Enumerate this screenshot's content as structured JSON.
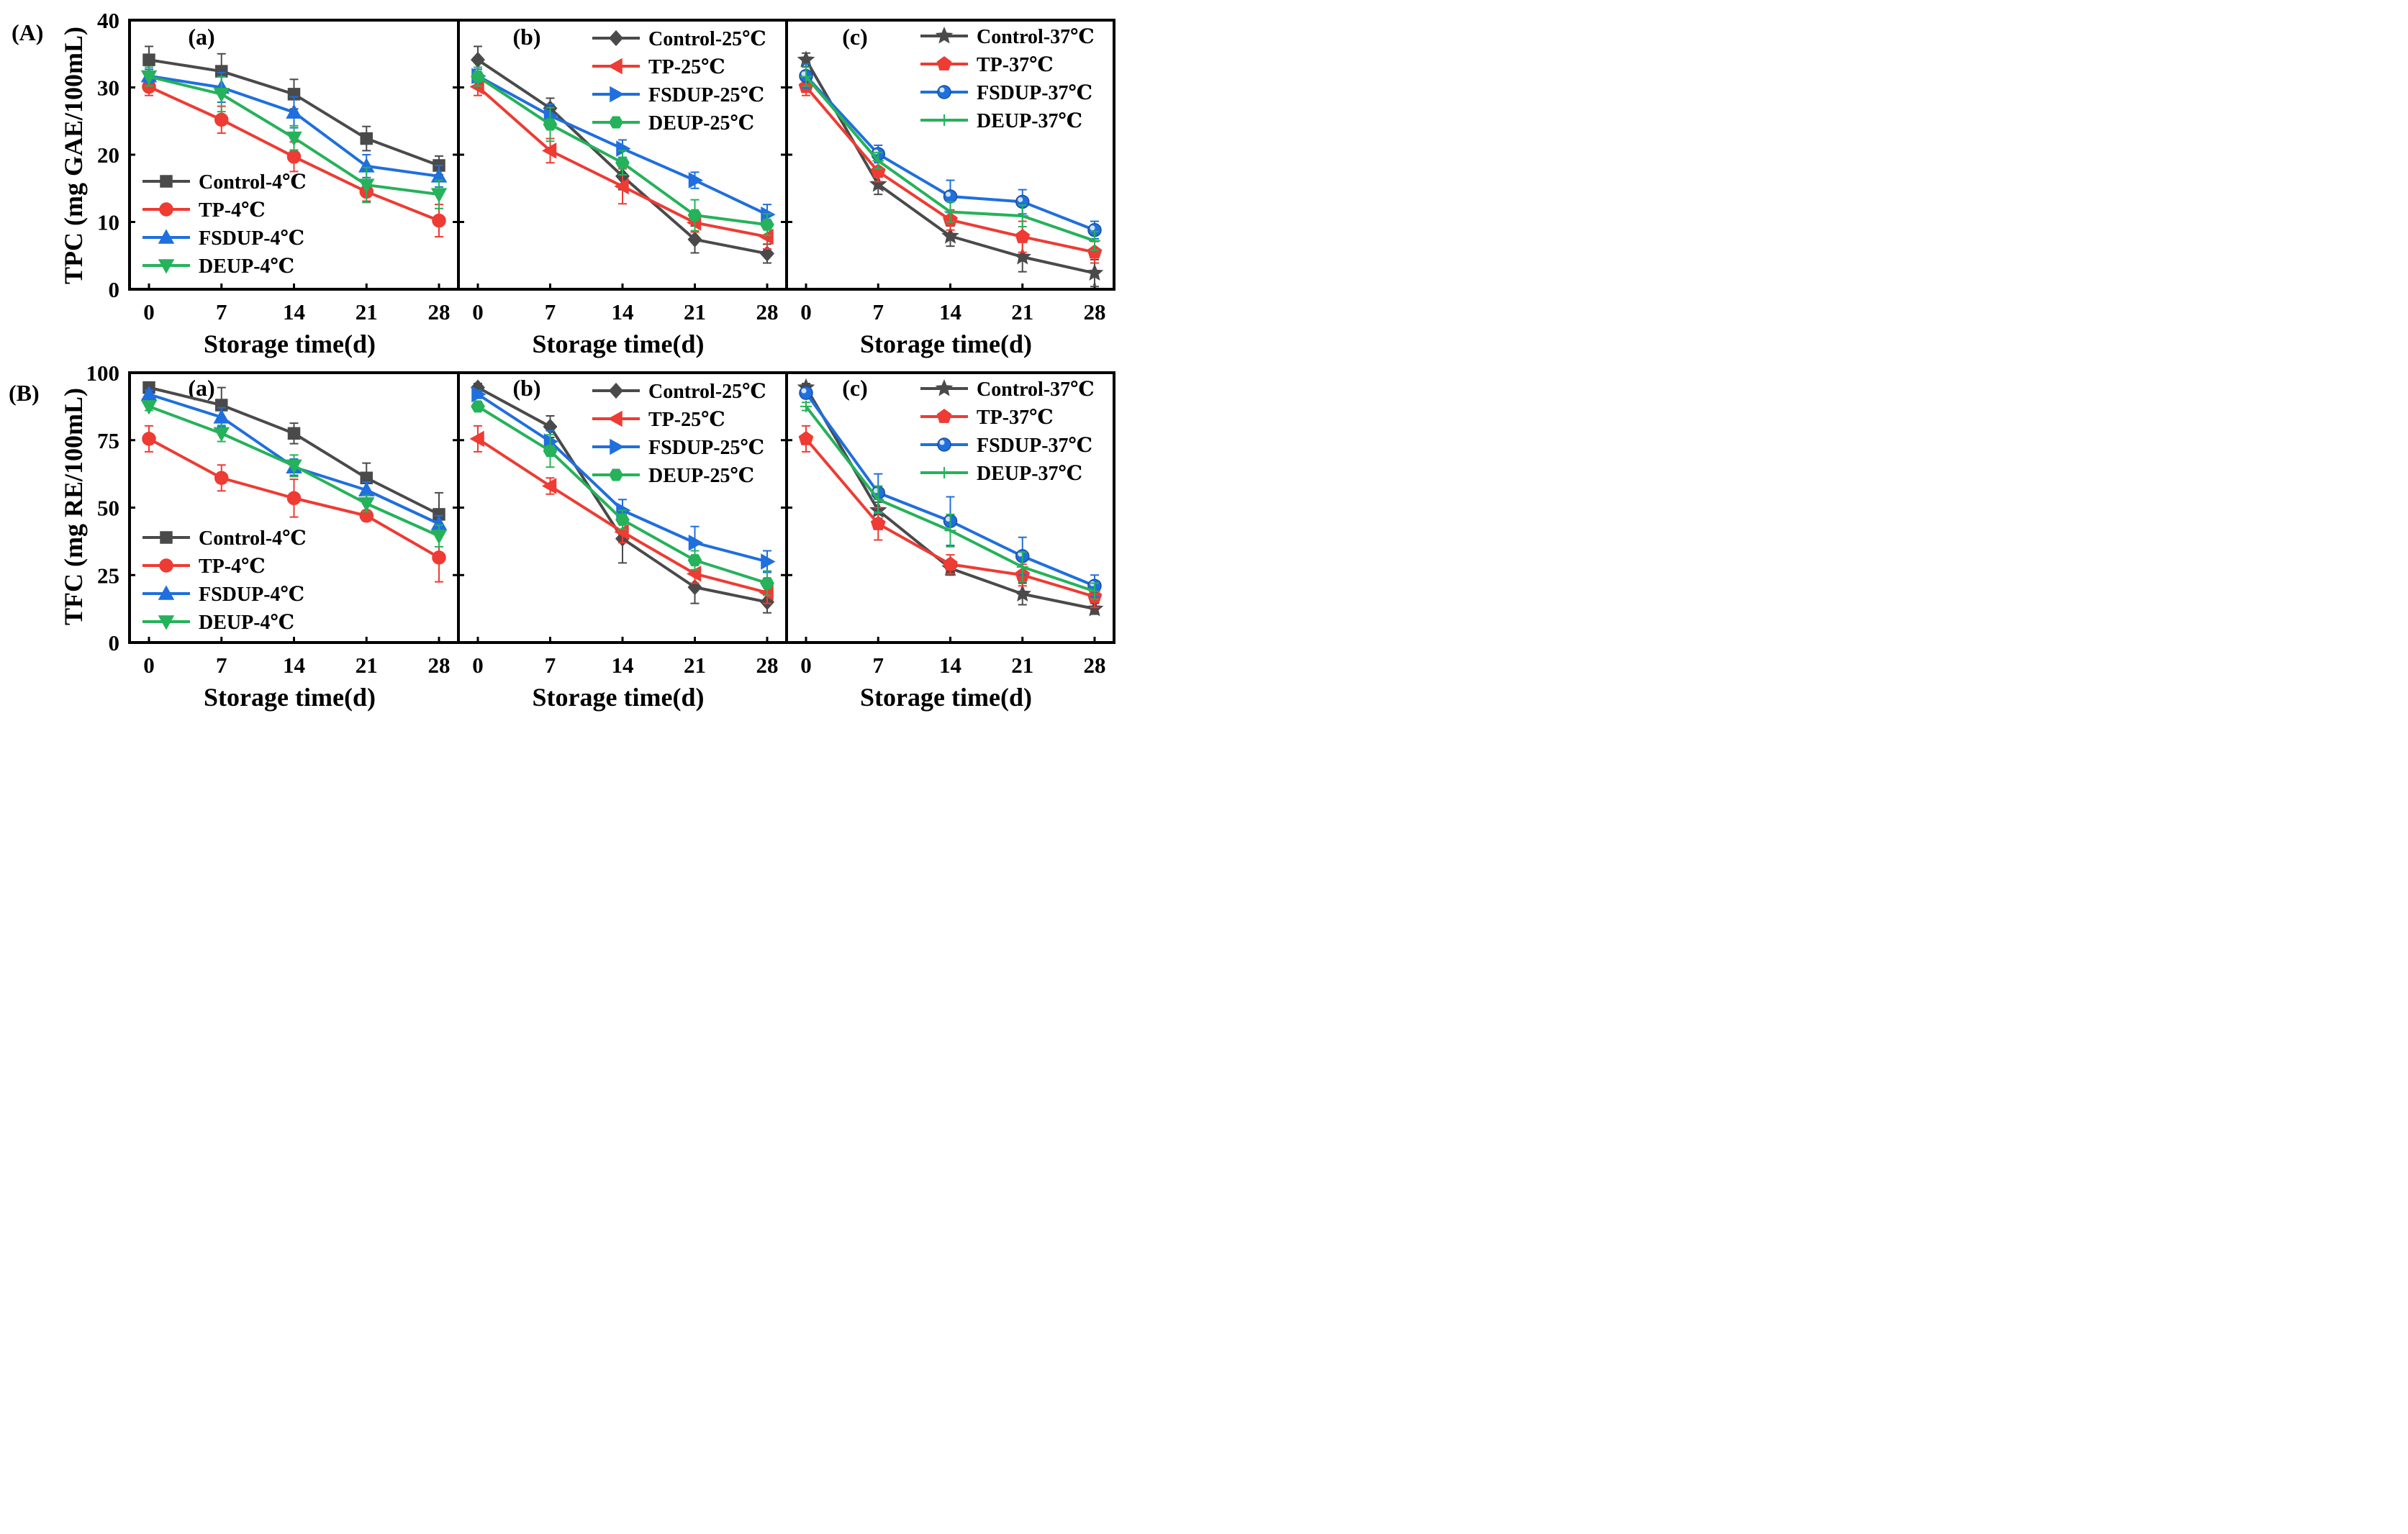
{
  "figure": {
    "row_labels": [
      "(A)",
      "(B)"
    ],
    "panel_labels": [
      "(a)",
      "(b)",
      "(c)"
    ],
    "xlabel": "Storage time(d)",
    "ylabels": [
      "TPC (mg GAE/100mL)",
      "TFC (mg RE/100mL)"
    ]
  },
  "colors": {
    "Control": "#4a4a4a",
    "TP": "#ee3b33",
    "FSDUP": "#1f6fde",
    "DEUP": "#25b25a"
  },
  "chart_data": [
    {
      "type": "line",
      "row": "(A)",
      "panel": "(a)",
      "x": [
        0,
        7,
        14,
        21,
        28
      ],
      "xticks": [
        "0",
        "7",
        "14",
        "21",
        "28"
      ],
      "ylim": [
        0,
        40
      ],
      "yticks": [
        "0",
        "10",
        "20",
        "30",
        "40"
      ],
      "xlabel": "Storage time(d)",
      "ylabel": "TPC (mg GAE/100mL)",
      "legend_position": "lower-left",
      "series": [
        {
          "name": "Control-4℃",
          "group": "Control",
          "marker": "square",
          "values": [
            34.1,
            32.4,
            29.0,
            22.4,
            18.4
          ],
          "errors": [
            2.0,
            2.6,
            2.2,
            1.8,
            1.4
          ]
        },
        {
          "name": "TP-4℃",
          "group": "TP",
          "marker": "circle",
          "values": [
            30.1,
            25.2,
            19.7,
            14.5,
            10.2
          ],
          "errors": [
            1.3,
            2.0,
            2.2,
            1.4,
            2.4
          ]
        },
        {
          "name": "FSDUP-4℃",
          "group": "FSDUP",
          "marker": "triangle-up",
          "values": [
            31.7,
            30.0,
            26.3,
            18.3,
            16.8
          ],
          "errors": [
            1.0,
            2.2,
            2.3,
            1.7,
            1.6
          ]
        },
        {
          "name": "DEUP-4℃",
          "group": "DEUP",
          "marker": "triangle-down",
          "values": [
            31.6,
            29.0,
            22.5,
            15.5,
            14.1
          ],
          "errors": [
            1.4,
            2.6,
            1.8,
            2.6,
            2.1
          ]
        }
      ]
    },
    {
      "type": "line",
      "row": "(A)",
      "panel": "(b)",
      "x": [
        0,
        7,
        14,
        21,
        28
      ],
      "xticks": [
        "0",
        "7",
        "14",
        "21",
        "28"
      ],
      "ylim": [
        0,
        40
      ],
      "yticks": [],
      "xlabel": "Storage time(d)",
      "legend_position": "top-right",
      "series": [
        {
          "name": "Control-25℃",
          "group": "Control",
          "marker": "diamond",
          "values": [
            34.1,
            26.9,
            16.8,
            7.4,
            5.3
          ],
          "errors": [
            2.0,
            1.5,
            2.0,
            2.0,
            1.4
          ]
        },
        {
          "name": "TP-25℃",
          "group": "TP",
          "marker": "triangle-left",
          "values": [
            30.1,
            20.6,
            15.3,
            9.9,
            7.8
          ],
          "errors": [
            1.3,
            1.8,
            2.6,
            1.4,
            1.8
          ]
        },
        {
          "name": "FSDUP-25℃",
          "group": "FSDUP",
          "marker": "triangle-right",
          "values": [
            31.7,
            25.8,
            20.9,
            16.2,
            11.1
          ],
          "errors": [
            1.0,
            1.7,
            1.3,
            1.2,
            1.5
          ]
        },
        {
          "name": "DEUP-25℃",
          "group": "DEUP",
          "marker": "hexagon",
          "values": [
            31.6,
            24.5,
            18.8,
            11.0,
            9.6
          ],
          "errors": [
            1.4,
            2.5,
            1.8,
            2.3,
            1.6
          ]
        }
      ]
    },
    {
      "type": "line",
      "row": "(A)",
      "panel": "(c)",
      "x": [
        0,
        7,
        14,
        21,
        28
      ],
      "xticks": [
        "0",
        "7",
        "14",
        "21",
        "28"
      ],
      "ylim": [
        0,
        40
      ],
      "yticks": [],
      "xlabel": "Storage time(d)",
      "legend_position": "top-right",
      "series": [
        {
          "name": "Control-37℃",
          "group": "Control",
          "marker": "star",
          "values": [
            34.1,
            15.6,
            7.9,
            4.8,
            2.4
          ],
          "errors": [
            1.0,
            1.5,
            1.5,
            2.2,
            2.0
          ]
        },
        {
          "name": "TP-37℃",
          "group": "TP",
          "marker": "pentagon",
          "values": [
            30.1,
            17.5,
            10.3,
            7.8,
            5.5
          ],
          "errors": [
            1.3,
            1.5,
            1.5,
            2.3,
            1.6
          ]
        },
        {
          "name": "FSDUP-37℃",
          "group": "FSDUP",
          "marker": "sphere",
          "values": [
            31.7,
            20.1,
            13.8,
            13.0,
            8.8
          ],
          "errors": [
            1.8,
            1.3,
            2.4,
            1.8,
            1.3
          ]
        },
        {
          "name": "DEUP-37℃",
          "group": "DEUP",
          "marker": "plus",
          "values": [
            31.6,
            19.1,
            11.5,
            10.9,
            7.2
          ],
          "errors": [
            1.4,
            1.2,
            1.5,
            1.6,
            1.4
          ]
        }
      ]
    },
    {
      "type": "line",
      "row": "(B)",
      "panel": "(a)",
      "x": [
        0,
        7,
        14,
        21,
        28
      ],
      "xticks": [
        "0",
        "7",
        "14",
        "21",
        "28"
      ],
      "ylim": [
        0,
        100
      ],
      "yticks": [
        "0",
        "25",
        "50",
        "75",
        "100"
      ],
      "xlabel": "Storage time(d)",
      "ylabel": "TFC (mg RE/100mL)",
      "legend_position": "lower-left",
      "series": [
        {
          "name": "Control-4℃",
          "group": "Control",
          "marker": "square",
          "values": [
            94.5,
            88.0,
            77.5,
            61.0,
            47.5
          ],
          "errors": [
            1.5,
            6.5,
            3.8,
            5.5,
            8.0
          ]
        },
        {
          "name": "TP-4℃",
          "group": "TP",
          "marker": "circle",
          "values": [
            75.5,
            61.0,
            53.5,
            47.0,
            31.5
          ],
          "errors": [
            4.8,
            4.8,
            7.0,
            2.0,
            9.0
          ]
        },
        {
          "name": "FSDUP-4℃",
          "group": "FSDUP",
          "marker": "triangle-up",
          "values": [
            92.0,
            83.5,
            65.0,
            56.5,
            44.0
          ],
          "errors": [
            1.5,
            3.5,
            3.0,
            3.0,
            3.0
          ]
        },
        {
          "name": "DEUP-4℃",
          "group": "DEUP",
          "marker": "triangle-down",
          "values": [
            87.5,
            77.5,
            65.5,
            51.5,
            39.5
          ],
          "errors": [
            1.5,
            3.0,
            4.0,
            3.0,
            4.0
          ]
        }
      ]
    },
    {
      "type": "line",
      "row": "(B)",
      "panel": "(b)",
      "x": [
        0,
        7,
        14,
        21,
        28
      ],
      "xticks": [
        "0",
        "7",
        "14",
        "21",
        "28"
      ],
      "ylim": [
        0,
        100
      ],
      "yticks": [],
      "xlabel": "Storage time(d)",
      "legend_position": "top-right",
      "series": [
        {
          "name": "Control-25℃",
          "group": "Control",
          "marker": "diamond",
          "values": [
            94.5,
            80.0,
            38.5,
            20.5,
            15.0
          ],
          "errors": [
            1.5,
            4.0,
            9.0,
            6.0,
            4.0
          ]
        },
        {
          "name": "TP-25℃",
          "group": "TP",
          "marker": "triangle-left",
          "values": [
            75.5,
            58.0,
            41.0,
            25.5,
            18.5
          ],
          "errors": [
            4.8,
            3.0,
            4.0,
            3.5,
            4.0
          ]
        },
        {
          "name": "FSDUP-25℃",
          "group": "FSDUP",
          "marker": "triangle-right",
          "values": [
            92.0,
            74.5,
            49.0,
            37.0,
            30.0
          ],
          "errors": [
            1.5,
            4.0,
            4.0,
            6.0,
            4.0
          ]
        },
        {
          "name": "DEUP-25℃",
          "group": "DEUP",
          "marker": "hexagon",
          "values": [
            87.5,
            71.0,
            45.5,
            30.5,
            22.0
          ],
          "errors": [
            1.5,
            6.0,
            3.5,
            3.5,
            4.5
          ]
        }
      ]
    },
    {
      "type": "line",
      "row": "(B)",
      "panel": "(c)",
      "x": [
        0,
        7,
        14,
        21,
        28
      ],
      "xticks": [
        "0",
        "7",
        "14",
        "21",
        "28"
      ],
      "ylim": [
        0,
        100
      ],
      "yticks": [],
      "xlabel": "Storage time(d)",
      "legend_position": "top-right",
      "series": [
        {
          "name": "Control-37℃",
          "group": "Control",
          "marker": "star",
          "values": [
            94.5,
            49.0,
            27.5,
            18.0,
            12.5
          ],
          "errors": [
            1.5,
            3.0,
            2.5,
            4.0,
            2.0
          ]
        },
        {
          "name": "TP-37℃",
          "group": "TP",
          "marker": "pentagon",
          "values": [
            75.5,
            44.0,
            29.0,
            25.0,
            17.0
          ],
          "errors": [
            4.8,
            6.0,
            3.5,
            4.0,
            4.0
          ]
        },
        {
          "name": "FSDUP-37℃",
          "group": "FSDUP",
          "marker": "sphere",
          "values": [
            92.5,
            55.5,
            45.0,
            32.0,
            21.0
          ],
          "errors": [
            1.5,
            7.0,
            9.0,
            7.0,
            4.0
          ]
        },
        {
          "name": "DEUP-37℃",
          "group": "DEUP",
          "marker": "plus",
          "values": [
            87.5,
            53.0,
            41.5,
            28.0,
            19.0
          ],
          "errors": [
            1.5,
            5.0,
            6.0,
            5.5,
            3.0
          ]
        }
      ]
    }
  ]
}
